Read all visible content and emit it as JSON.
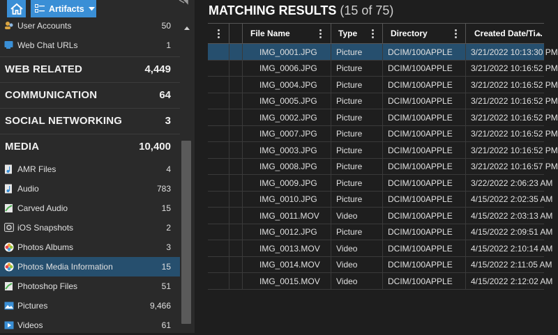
{
  "toolbar": {
    "artifacts_label": "Artifacts",
    "home_icon": "home-icon",
    "pin_icon": "pin-icon"
  },
  "sidebar": {
    "items": [
      {
        "type": "item",
        "icon": "user-accounts-icon",
        "label": "User Accounts",
        "count": "50"
      },
      {
        "type": "item",
        "icon": "web-chat-icon",
        "label": "Web Chat URLs",
        "count": "1"
      },
      {
        "type": "category",
        "label": "WEB RELATED",
        "count": "4,449"
      },
      {
        "type": "category",
        "label": "COMMUNICATION",
        "count": "64"
      },
      {
        "type": "category",
        "label": "SOCIAL NETWORKING",
        "count": "3"
      },
      {
        "type": "category",
        "label": "MEDIA",
        "count": "10,400"
      },
      {
        "type": "item",
        "icon": "audio-file-icon",
        "label": "AMR Files",
        "count": "4"
      },
      {
        "type": "item",
        "icon": "audio-file-icon",
        "label": "Audio",
        "count": "783"
      },
      {
        "type": "item",
        "icon": "carved-icon",
        "label": "Carved Audio",
        "count": "15"
      },
      {
        "type": "item",
        "icon": "snapshot-icon",
        "label": "iOS Snapshots",
        "count": "2"
      },
      {
        "type": "item",
        "icon": "photos-icon",
        "label": "Photos Albums",
        "count": "3"
      },
      {
        "type": "item",
        "icon": "photos-icon",
        "label": "Photos Media Information",
        "count": "15",
        "selected": true
      },
      {
        "type": "item",
        "icon": "carved-icon",
        "label": "Photoshop Files",
        "count": "51"
      },
      {
        "type": "item",
        "icon": "picture-icon",
        "label": "Pictures",
        "count": "9,466"
      },
      {
        "type": "item",
        "icon": "video-icon",
        "label": "Videos",
        "count": "61"
      }
    ]
  },
  "results": {
    "title": "MATCHING RESULTS",
    "count_text": "(15 of 75)",
    "columns": [
      "File Name",
      "Type",
      "Directory",
      "Created Date/Ti..."
    ],
    "rows": [
      [
        "IMG_0001.JPG",
        "Picture",
        "DCIM/100APPLE",
        "3/21/2022 10:13:30 PM"
      ],
      [
        "IMG_0006.JPG",
        "Picture",
        "DCIM/100APPLE",
        "3/21/2022 10:16:52 PM"
      ],
      [
        "IMG_0004.JPG",
        "Picture",
        "DCIM/100APPLE",
        "3/21/2022 10:16:52 PM"
      ],
      [
        "IMG_0005.JPG",
        "Picture",
        "DCIM/100APPLE",
        "3/21/2022 10:16:52 PM"
      ],
      [
        "IMG_0002.JPG",
        "Picture",
        "DCIM/100APPLE",
        "3/21/2022 10:16:52 PM"
      ],
      [
        "IMG_0007.JPG",
        "Picture",
        "DCIM/100APPLE",
        "3/21/2022 10:16:52 PM"
      ],
      [
        "IMG_0003.JPG",
        "Picture",
        "DCIM/100APPLE",
        "3/21/2022 10:16:52 PM"
      ],
      [
        "IMG_0008.JPG",
        "Picture",
        "DCIM/100APPLE",
        "3/21/2022 10:16:57 PM"
      ],
      [
        "IMG_0009.JPG",
        "Picture",
        "DCIM/100APPLE",
        "3/22/2022 2:06:23 AM"
      ],
      [
        "IMG_0010.JPG",
        "Picture",
        "DCIM/100APPLE",
        "4/15/2022 2:02:35 AM"
      ],
      [
        "IMG_0011.MOV",
        "Video",
        "DCIM/100APPLE",
        "4/15/2022 2:03:13 AM"
      ],
      [
        "IMG_0012.JPG",
        "Picture",
        "DCIM/100APPLE",
        "4/15/2022 2:09:51 AM"
      ],
      [
        "IMG_0013.MOV",
        "Video",
        "DCIM/100APPLE",
        "4/15/2022 2:10:14 AM"
      ],
      [
        "IMG_0014.MOV",
        "Video",
        "DCIM/100APPLE",
        "4/15/2022 2:11:05 AM"
      ],
      [
        "IMG_0015.MOV",
        "Video",
        "DCIM/100APPLE",
        "4/15/2022 2:12:02 AM"
      ]
    ],
    "selected_row": 0
  },
  "colors": {
    "accent": "#3a8fd6",
    "selection": "#264f6e",
    "panel": "#2a2a2a",
    "background": "#1e1e1e"
  }
}
